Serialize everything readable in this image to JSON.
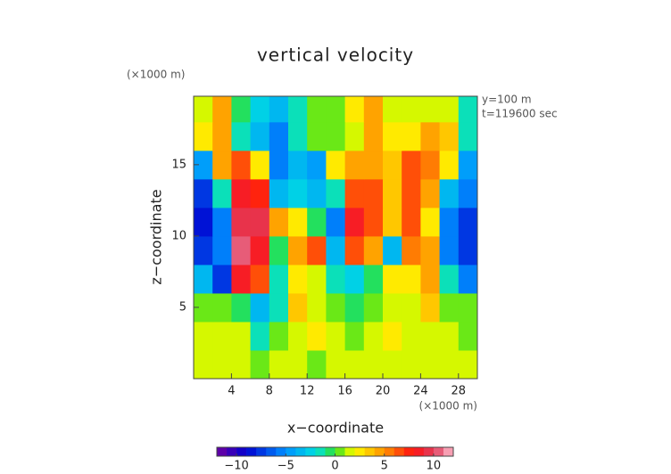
{
  "chart_data": {
    "type": "contour",
    "title": "vertical velocity",
    "x_label": "x−coordinate",
    "y_label": "z−coordinate",
    "x_unit": "(×1000 m)",
    "y_unit": "(×1000 m)",
    "annotations": [
      "y=100 m",
      "t=119600 sec"
    ],
    "xlim": [
      0,
      30
    ],
    "ylim": [
      0,
      19.8
    ],
    "xticks": [
      4,
      8,
      12,
      16,
      20,
      24,
      28
    ],
    "yticks": [
      5,
      10,
      15
    ],
    "x": [
      1,
      3,
      5,
      7,
      9,
      11,
      13,
      15,
      17,
      19,
      21,
      23,
      25,
      27,
      29
    ],
    "z": [
      1,
      3,
      5,
      7,
      9,
      11,
      13,
      15,
      17,
      19
    ],
    "values": [
      [
        1,
        1,
        1,
        0,
        1,
        1,
        0,
        1,
        1,
        1,
        1,
        1,
        1,
        1,
        1
      ],
      [
        1,
        1,
        1,
        -2,
        0,
        1,
        2,
        1,
        0,
        1,
        2,
        1,
        1,
        1,
        0
      ],
      [
        0,
        0,
        -1,
        -4,
        -2,
        3,
        1,
        0,
        -1,
        0,
        1,
        1,
        3,
        0,
        0
      ],
      [
        -4,
        -8,
        8,
        6,
        -2,
        2,
        1,
        -2,
        -3,
        -1,
        2,
        2,
        4,
        -2,
        -6
      ],
      [
        -8,
        -6,
        10,
        8,
        -1,
        4,
        6,
        -4,
        6,
        4,
        -4,
        5,
        4,
        -6,
        -8
      ],
      [
        -9,
        -6,
        9,
        9,
        4,
        2,
        -1,
        -6,
        8,
        6,
        3,
        6,
        2,
        -6,
        -8
      ],
      [
        -8,
        -2,
        8,
        7,
        -4,
        -3,
        -4,
        -2,
        6,
        6,
        3,
        6,
        4,
        -4,
        -6
      ],
      [
        -5,
        4,
        6,
        2,
        -6,
        -4,
        -5,
        2,
        4,
        4,
        3,
        6,
        5,
        2,
        -5
      ],
      [
        2,
        4,
        -2,
        -4,
        -6,
        -2,
        0,
        0,
        1,
        4,
        2,
        2,
        4,
        3,
        -2
      ],
      [
        1,
        4,
        -1,
        -3,
        -4,
        -2,
        0,
        0,
        2,
        4,
        1,
        1,
        1,
        1,
        -2
      ]
    ],
    "colorbar": {
      "lim": [
        -12,
        12
      ],
      "ticks": [
        {
          "value": -10,
          "label": "−10"
        },
        {
          "value": -5,
          "label": "−5"
        },
        0,
        5,
        10
      ]
    }
  }
}
